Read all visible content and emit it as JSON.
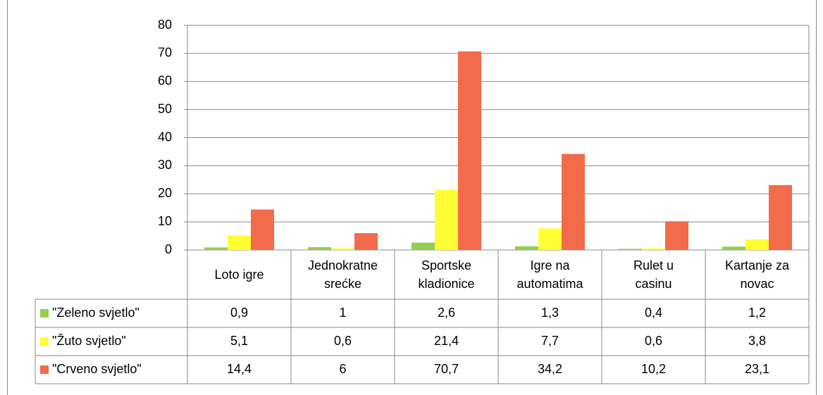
{
  "chart_data": {
    "type": "bar",
    "categories": [
      "Loto igre",
      "Jednokratne srećke",
      "Sportske kladionice",
      "Igre na automatima",
      "Rulet u casinu",
      "Kartanje za novac"
    ],
    "series": [
      {
        "name": "\"Zeleno svjetlo\"",
        "color": "#92d050",
        "values": [
          0.9,
          1,
          2.6,
          1.3,
          0.4,
          1.2
        ],
        "value_labels": [
          "0,9",
          "1",
          "2,6",
          "1,3",
          "0,4",
          "1,2"
        ]
      },
      {
        "name": "\"Žuto svjetlo\"",
        "color": "#ffff33",
        "values": [
          5.1,
          0.6,
          21.4,
          7.7,
          0.6,
          3.8
        ],
        "value_labels": [
          "5,1",
          "0,6",
          "21,4",
          "7,7",
          "0,6",
          "3,8"
        ]
      },
      {
        "name": "\"Crveno svjetlo\"",
        "color": "#f26b4b",
        "values": [
          14.4,
          6,
          70.7,
          34.2,
          10.2,
          23.1
        ],
        "value_labels": [
          "14,4",
          "6",
          "70,7",
          "34,2",
          "10,2",
          "23,1"
        ]
      }
    ],
    "ylim": [
      0,
      80
    ],
    "yticks": [
      0,
      10,
      20,
      30,
      40,
      50,
      60,
      70,
      80
    ],
    "grid": true
  }
}
